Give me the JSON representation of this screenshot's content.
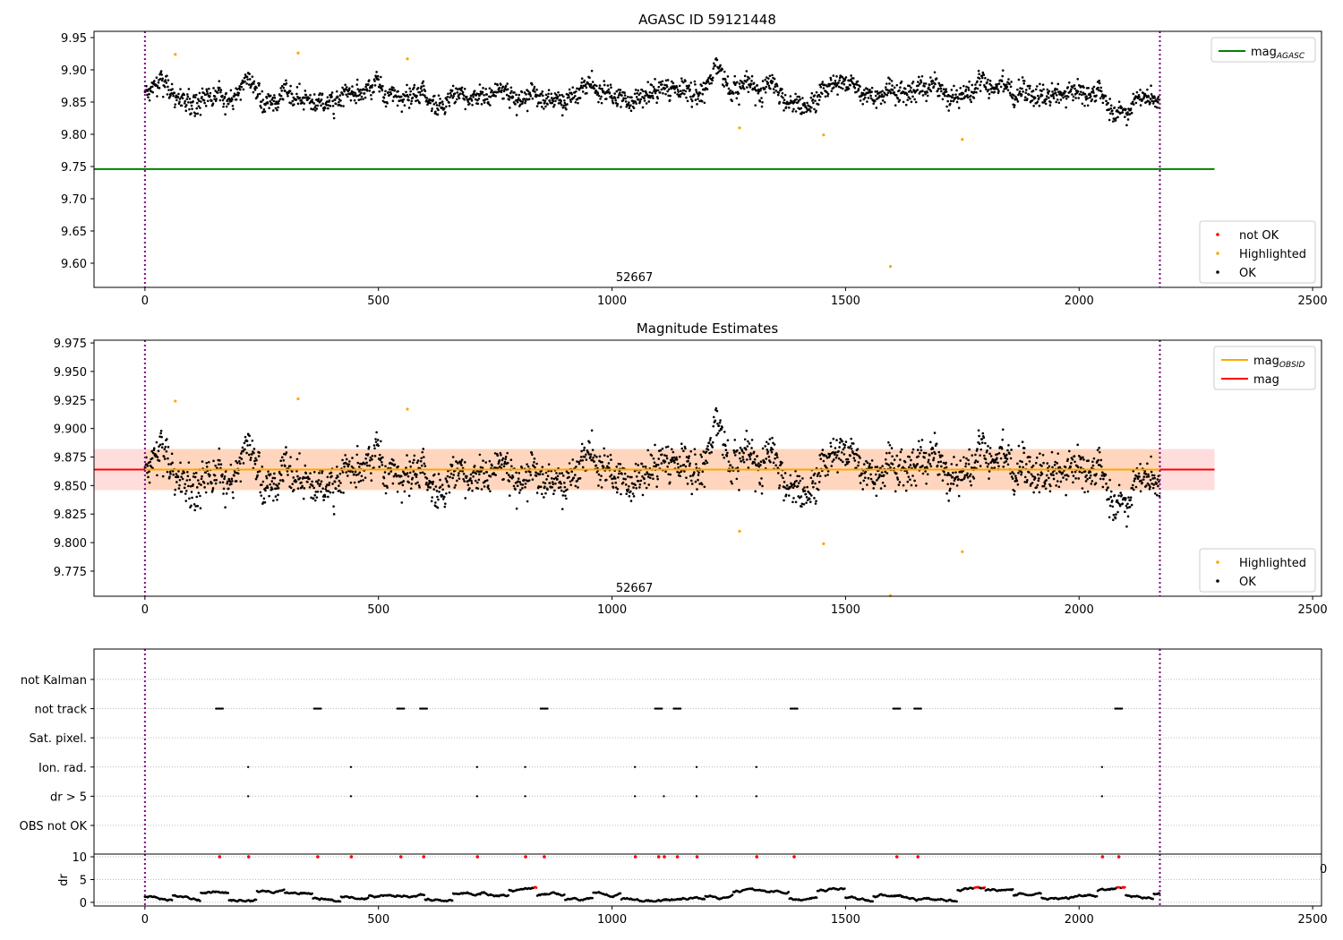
{
  "chart_data": [
    {
      "type": "scatter",
      "title": "AGASC ID 59121448",
      "xlim": [
        -109,
        2519
      ],
      "ylim": [
        9.5625,
        9.9597
      ],
      "xticks": [
        0,
        500,
        1000,
        1500,
        2000,
        2500
      ],
      "yticks": [
        9.6,
        9.65,
        9.7,
        9.75,
        9.8,
        9.85,
        9.9,
        9.95
      ],
      "obs_boundaries": [
        0,
        2173
      ],
      "annotation": {
        "text": "52667",
        "x": 1085,
        "y": 9.572
      },
      "mag_agasc": 9.746,
      "line_range": [
        -109,
        2290
      ],
      "ok_series": {
        "n": 2173,
        "mean": 9.864,
        "sd": 0.014
      },
      "highlighted": [
        [
          65,
          9.924
        ],
        [
          328,
          9.926
        ],
        [
          562,
          9.917
        ],
        [
          1273,
          9.81
        ],
        [
          1453,
          9.799
        ],
        [
          1596,
          9.595
        ],
        [
          1750,
          9.792
        ]
      ],
      "legend_top": [
        "mag_AGASC"
      ],
      "legend_bottom": [
        "not OK",
        "Highlighted",
        "OK"
      ]
    },
    {
      "type": "scatter",
      "title": "Magnitude Estimates",
      "xlim": [
        -109,
        2519
      ],
      "ylim": [
        9.753,
        9.9774
      ],
      "xticks": [
        0,
        500,
        1000,
        1500,
        2000,
        2500
      ],
      "yticks": [
        9.775,
        9.8,
        9.825,
        9.85,
        9.875,
        9.9,
        9.925,
        9.95,
        9.975
      ],
      "annotation": {
        "text": "52667",
        "x": 1085,
        "y": 9.757
      },
      "mag": 9.864,
      "mag_obsid": 9.864,
      "band": [
        9.846,
        9.882
      ],
      "legend_top": [
        "mag_OBSID",
        "mag"
      ],
      "legend_bottom": [
        "Highlighted",
        "OK"
      ]
    },
    {
      "type": "scatter",
      "title": "",
      "xlim": [
        -109,
        2519
      ],
      "ylim": [
        -0.98,
        6.04
      ],
      "categories": [
        "OBS not OK",
        "dr > 5",
        "Ion. rad.",
        "Sat. pixel.",
        "not track",
        "not Kalman"
      ],
      "flags": {
        "not track": [
          160,
          370,
          548,
          597,
          855,
          1100,
          1140,
          1390,
          1610,
          1655,
          2085
        ],
        "Ion. rad.": [
          222,
          442,
          712,
          815,
          1050,
          1182,
          1310,
          2050
        ],
        "dr > 5": [
          222,
          442,
          712,
          815,
          1050,
          1112,
          1182,
          1310,
          2050
        ]
      }
    },
    {
      "type": "scatter",
      "ylabel": "dr",
      "xlim": [
        -109,
        2519
      ],
      "ylim": [
        -0.8,
        10.6
      ],
      "yticks": [
        0,
        5,
        10
      ],
      "xticks": [
        0,
        500,
        1000,
        1500,
        2000,
        2500
      ],
      "clipped_tick_label": "0"
    }
  ],
  "mag_sub": "AGASC",
  "mag_obsid_sub": "OBSID",
  "mag_label": "mag"
}
